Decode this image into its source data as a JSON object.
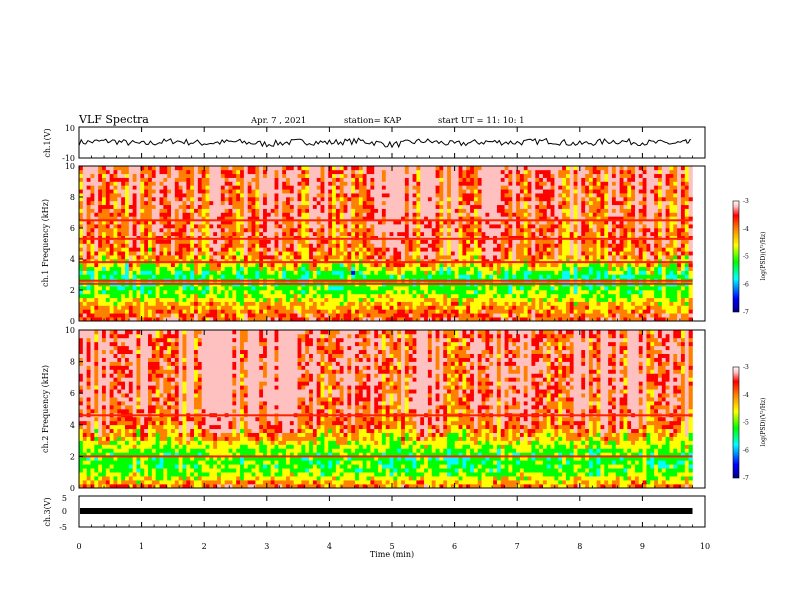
{
  "header": {
    "title": "VLF Spectra",
    "date": "Apr. 7 , 2021",
    "station": "station= KAP",
    "start_ut": "start UT = 11: 10: 1"
  },
  "colors": {
    "colormap": [
      "#000080",
      "#0000ff",
      "#00ffff",
      "#00ff00",
      "#ffff00",
      "#ff8000",
      "#ff0000",
      "#ffc0c0",
      "#ffffff"
    ],
    "trace": "#000000",
    "frame": "#000000"
  },
  "chart_data": [
    {
      "type": "line",
      "panel": "ch1-waveform",
      "ylabel": "ch.1(V)",
      "ylim": [
        -10,
        10
      ],
      "yticks": [
        "10",
        "-10"
      ],
      "xlim": [
        0,
        10
      ],
      "x_min": [
        0,
        0.5,
        1,
        1.5,
        2,
        2.5,
        3,
        3.5,
        4,
        4.5,
        5,
        5.5,
        6,
        6.5,
        7,
        7.5,
        8,
        8.5,
        9,
        9.5,
        9.8
      ],
      "y_V": [
        0,
        1,
        -1,
        1,
        -0.5,
        0.5,
        -1,
        0.5,
        0,
        1,
        -1.5,
        1,
        -1,
        0.5,
        0,
        1,
        -1,
        1,
        0,
        -0.5,
        0
      ]
    },
    {
      "type": "heatmap",
      "panel": "ch1-spectrogram",
      "ylabel": "ch.1 Frequency (kHz)",
      "ylim": [
        0,
        10
      ],
      "yticks": [
        "0",
        "2",
        "4",
        "6",
        "8",
        "10"
      ],
      "xlim": [
        0,
        10
      ],
      "data_end_min": 9.8,
      "colorbar": {
        "label": "log(PSD)(V²/Hz)",
        "range": [
          -7,
          -3
        ],
        "ticks": [
          "-3",
          "-4",
          "-5",
          "-6",
          "-7"
        ]
      },
      "band_rows_kHz": [
        0,
        1,
        2,
        3,
        4,
        5,
        6,
        7,
        8,
        9,
        10
      ],
      "band_level_logPSD": [
        -3.4,
        -4.0,
        -4.9,
        -5.1,
        -3.8,
        -3.6,
        -3.5,
        -3.4,
        -3.4,
        -3.3,
        -3.3
      ],
      "horizontal_lines_kHz": [
        3.8,
        2.6,
        2.4,
        5.3,
        6.5
      ]
    },
    {
      "type": "heatmap",
      "panel": "ch2-spectrogram",
      "ylabel": "ch.2 Frequency (kHz)",
      "ylim": [
        0,
        10
      ],
      "yticks": [
        "0",
        "2",
        "4",
        "6",
        "8",
        "10"
      ],
      "xlim": [
        0,
        10
      ],
      "data_end_min": 9.8,
      "colorbar": {
        "label": "log(PSD)(V²/Hz)",
        "range": [
          -7,
          -3
        ],
        "ticks": [
          "-3",
          "-4",
          "-5",
          "-6",
          "-7"
        ]
      },
      "band_rows_kHz": [
        0,
        1,
        2,
        3,
        4,
        5,
        6,
        7,
        8,
        9,
        10
      ],
      "band_level_logPSD": [
        -3.6,
        -4.8,
        -5.0,
        -4.3,
        -3.6,
        -3.4,
        -3.3,
        -3.3,
        -3.3,
        -3.3,
        -3.3
      ],
      "horizontal_lines_kHz": [
        2.0,
        4.6
      ]
    },
    {
      "type": "line",
      "panel": "ch3-waveform",
      "ylabel": "ch.3(V)",
      "ylim": [
        -5,
        5
      ],
      "yticks": [
        "5",
        "0",
        "-5"
      ],
      "xlim": [
        0,
        10
      ],
      "x_min": [
        0,
        9.8
      ],
      "y_V": [
        0,
        0
      ]
    }
  ],
  "x_axis": {
    "label": "Time (min)",
    "ticks": [
      "0",
      "1",
      "2",
      "3",
      "4",
      "5",
      "6",
      "7",
      "8",
      "9",
      "10"
    ]
  }
}
